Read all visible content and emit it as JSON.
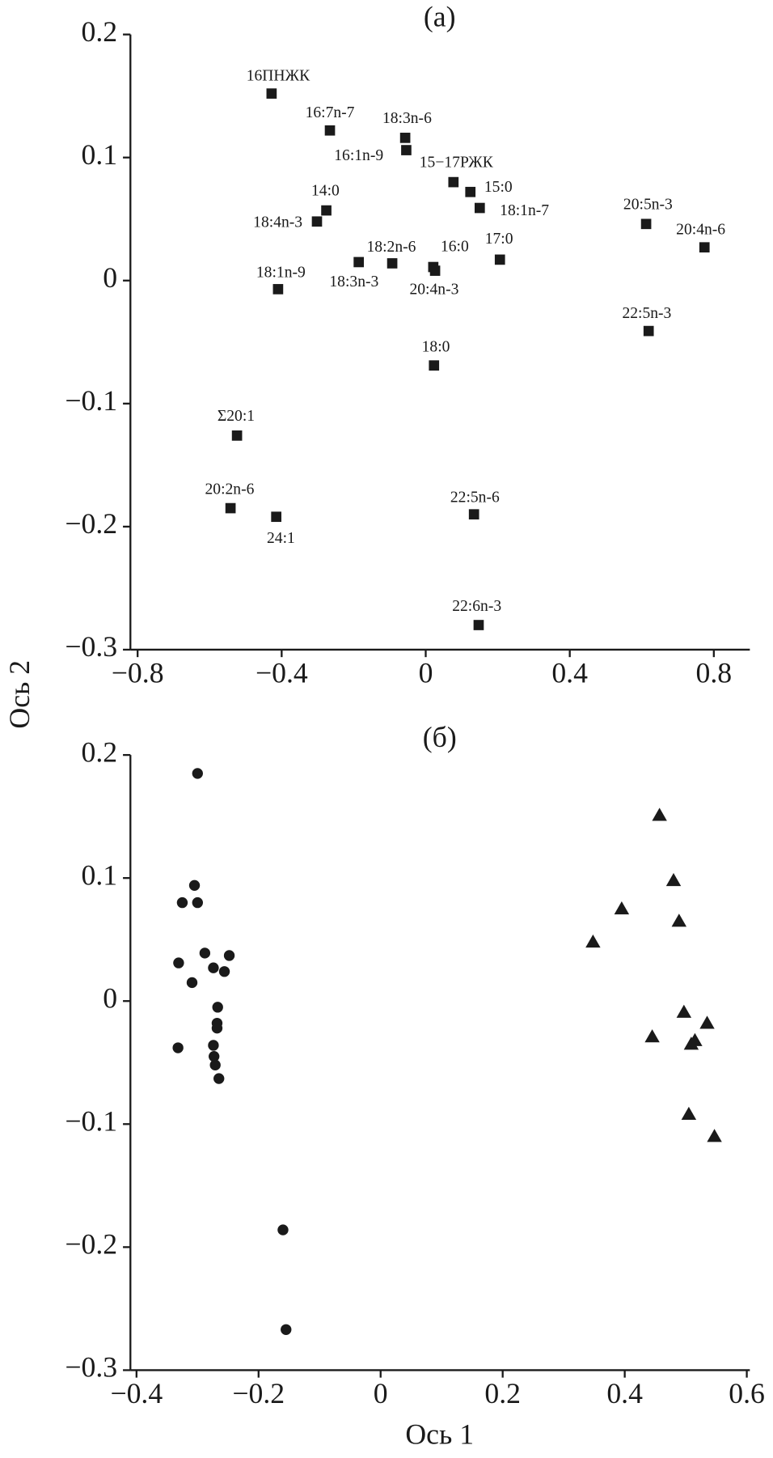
{
  "chart_data": [
    {
      "type": "scatter",
      "title": "(а)",
      "ylabel": "Ось 2",
      "marker": "square",
      "color": "#1a1a1a",
      "xlim": [
        -0.82,
        0.9
      ],
      "ylim": [
        -0.3,
        0.2
      ],
      "xticks": [
        {
          "value": -0.8,
          "label": "−0.8"
        },
        {
          "value": -0.4,
          "label": "−0.4"
        },
        0,
        0.4,
        0.8
      ],
      "yticks": [
        {
          "value": -0.3,
          "label": "−0.3"
        },
        {
          "value": -0.2,
          "label": "−0.2"
        },
        {
          "value": -0.1,
          "label": "−0.1"
        },
        0,
        0.1,
        0.2
      ],
      "point_labels": [
        "16ПНЖК",
        "16:7n-7",
        "18:3n-6",
        "16:1n-9",
        "15−17РЖК",
        "15:0",
        "18:1n-7",
        "14:0",
        "18:4n-3",
        "20:5n-3",
        "20:4n-6",
        "18:2n-6",
        "18:3n-3",
        "16:0",
        "20:4n-3",
        "17:0",
        "18:1n-9",
        "22:5n-3",
        "18:0",
        "Σ20:1",
        "20:2n-6",
        "24:1",
        "22:5n-6",
        "22:6n-3"
      ],
      "x": [
        -0.428,
        -0.266,
        -0.057,
        -0.054,
        0.077,
        0.124,
        0.15,
        -0.276,
        -0.302,
        0.612,
        0.774,
        -0.186,
        -0.093,
        0.021,
        0.026,
        0.206,
        -0.41,
        0.619,
        0.023,
        -0.524,
        -0.542,
        -0.415,
        0.134,
        0.147
      ],
      "values": [
        0.152,
        0.122,
        0.116,
        0.106,
        0.08,
        0.072,
        0.059,
        0.057,
        0.048,
        0.046,
        0.027,
        0.015,
        0.014,
        0.011,
        0.008,
        0.017,
        -0.007,
        -0.041,
        -0.069,
        -0.126,
        -0.185,
        -0.192,
        -0.19,
        -0.28
      ]
    },
    {
      "type": "scatter",
      "title": "(б)",
      "xlabel": "Ось 1",
      "xlim": [
        -0.41,
        0.605
      ],
      "ylim": [
        -0.3,
        0.2
      ],
      "xticks": [
        {
          "value": -0.4,
          "label": "−0.4"
        },
        {
          "value": -0.2,
          "label": "−0.2"
        },
        0,
        0.2,
        0.4,
        0.6
      ],
      "yticks": [
        {
          "value": -0.3,
          "label": "−0.3"
        },
        {
          "value": -0.2,
          "label": "−0.2"
        },
        {
          "value": -0.1,
          "label": "−0.1"
        },
        0,
        0.1,
        0.2
      ],
      "series": [
        {
          "marker": "circle",
          "color": "#1a1a1a",
          "x": [
            -0.3,
            -0.305,
            -0.325,
            -0.3,
            -0.288,
            -0.248,
            -0.331,
            -0.274,
            -0.256,
            -0.309,
            -0.267,
            -0.268,
            -0.268,
            -0.274,
            -0.273,
            -0.271,
            -0.265,
            -0.332,
            -0.16,
            -0.155
          ],
          "values": [
            0.185,
            0.094,
            0.08,
            0.08,
            0.039,
            0.037,
            0.031,
            0.027,
            0.024,
            0.015,
            -0.005,
            -0.018,
            -0.022,
            -0.036,
            -0.045,
            -0.052,
            -0.063,
            -0.038,
            -0.186,
            -0.267
          ]
        },
        {
          "marker": "triangle",
          "color": "#1a1a1a",
          "x": [
            0.457,
            0.48,
            0.395,
            0.489,
            0.348,
            0.497,
            0.535,
            0.515,
            0.509,
            0.445,
            0.505,
            0.547
          ],
          "values": [
            0.151,
            0.098,
            0.075,
            0.065,
            0.048,
            -0.009,
            -0.018,
            -0.032,
            -0.035,
            -0.029,
            -0.092,
            -0.11
          ]
        }
      ]
    }
  ]
}
